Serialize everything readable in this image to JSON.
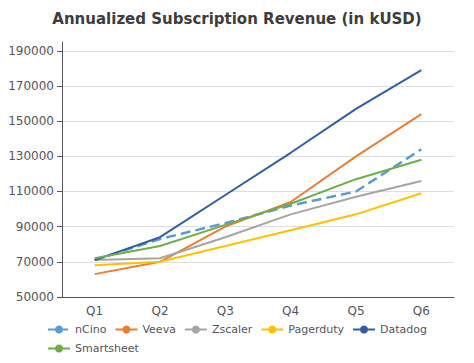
{
  "chart_data": {
    "type": "line",
    "title": "Annualized Subscription Revenue (in kUSD)",
    "categories": [
      "Q1",
      "Q2",
      "Q3",
      "Q4",
      "Q5",
      "Q6"
    ],
    "series": [
      {
        "name": "nCino",
        "color": "#5B9BD5",
        "line_style": "dashed",
        "values": [
          71000,
          83000,
          92000,
          102000,
          110000,
          134000
        ]
      },
      {
        "name": "Veeva",
        "color": "#ED7D31",
        "line_style": "solid",
        "values": [
          63000,
          70000,
          90000,
          104000,
          130000,
          154000
        ]
      },
      {
        "name": "Zscaler",
        "color": "#A5A5A5",
        "line_style": "solid",
        "values": [
          71000,
          72000,
          84000,
          97000,
          107000,
          116000
        ]
      },
      {
        "name": "Pagerduty",
        "color": "#FFC000",
        "line_style": "solid",
        "values": [
          68000,
          70000,
          79000,
          88000,
          97000,
          109000
        ]
      },
      {
        "name": "Datadog",
        "color": "#2E5FA3",
        "line_style": "solid",
        "values": [
          71000,
          84000,
          108000,
          132000,
          157000,
          179000
        ]
      },
      {
        "name": "Smartsheet",
        "color": "#70AD47",
        "line_style": "solid",
        "values": [
          72000,
          79000,
          91000,
          103000,
          117000,
          128000
        ]
      }
    ],
    "ylim": [
      50000,
      195000
    ],
    "yticks": [
      50000,
      70000,
      90000,
      110000,
      130000,
      150000,
      170000,
      190000
    ],
    "grid": true,
    "legend": "bottom"
  }
}
